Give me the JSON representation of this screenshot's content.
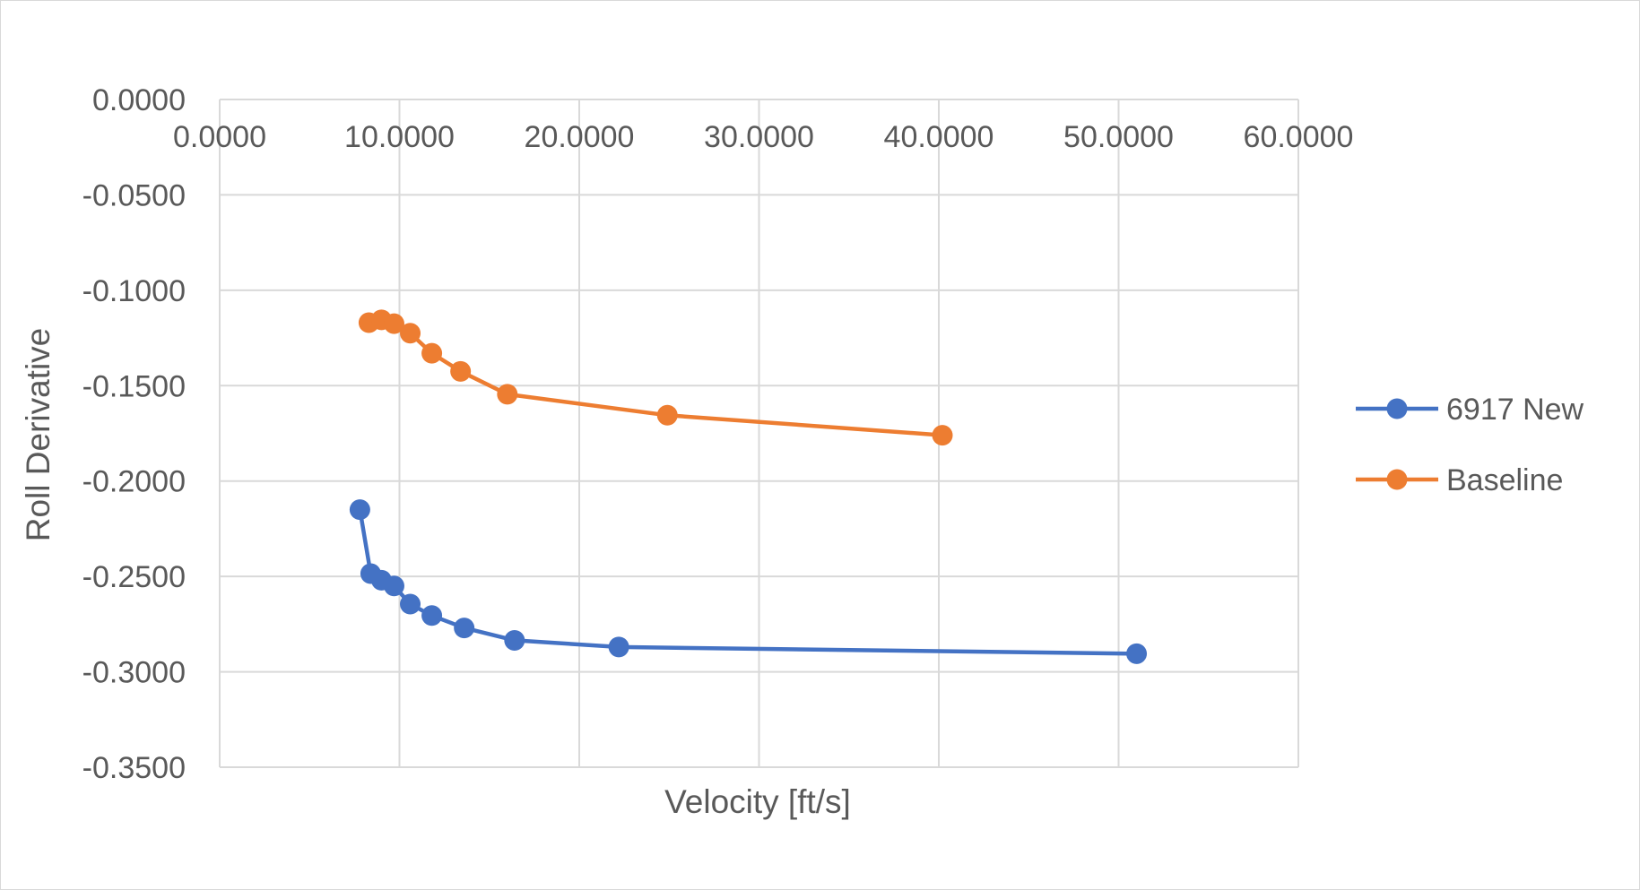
{
  "chart_data": {
    "type": "scatter",
    "mode": "lines+markers",
    "title": "",
    "xlabel": "Velocity [ft/s]",
    "ylabel": "Roll Derivative",
    "xlim": [
      0,
      60
    ],
    "ylim": [
      -0.35,
      0
    ],
    "x_ticks": [
      0,
      10,
      20,
      30,
      40,
      50,
      60
    ],
    "x_tick_labels": [
      "0.0000",
      "10.0000",
      "20.0000",
      "30.0000",
      "40.0000",
      "50.0000",
      "60.0000"
    ],
    "y_ticks": [
      0,
      -0.05,
      -0.1,
      -0.15,
      -0.2,
      -0.25,
      -0.3,
      -0.35
    ],
    "y_tick_labels": [
      "0.0000",
      "-0.0500",
      "-0.1000",
      "-0.1500",
      "-0.2000",
      "-0.2500",
      "-0.3000",
      "-0.3500"
    ],
    "x_axis_position": "top (crosses at y=0)",
    "grid": true,
    "legend_position": "right",
    "series": [
      {
        "name": "6917 New",
        "color": "#4472c4",
        "x": [
          7.8,
          8.4,
          9.0,
          9.7,
          10.6,
          11.8,
          13.6,
          16.4,
          22.2,
          51.0
        ],
        "y": [
          -0.215,
          -0.2485,
          -0.252,
          -0.255,
          -0.2645,
          -0.2705,
          -0.277,
          -0.2835,
          -0.287,
          -0.2905
        ]
      },
      {
        "name": "Baseline",
        "color": "#ed7d31",
        "x": [
          8.3,
          9.0,
          9.7,
          10.6,
          11.8,
          13.4,
          16.0,
          24.9,
          40.2
        ],
        "y": [
          -0.117,
          -0.1155,
          -0.1175,
          -0.1225,
          -0.133,
          -0.1425,
          -0.1545,
          -0.1655,
          -0.176
        ]
      }
    ]
  }
}
